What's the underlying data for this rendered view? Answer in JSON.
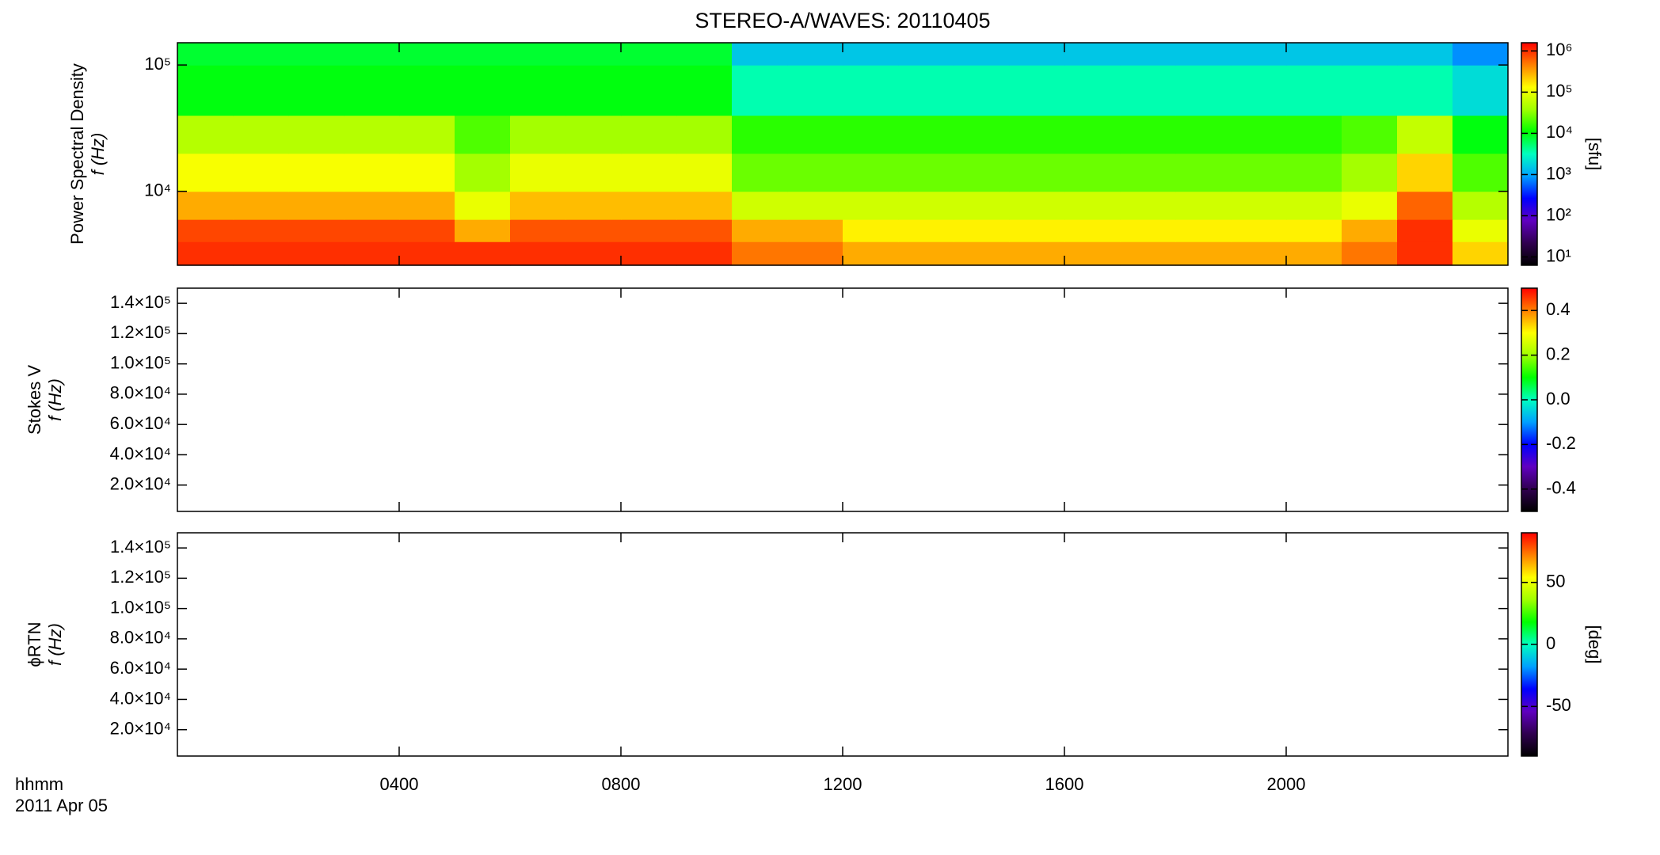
{
  "chart_data": [
    {
      "type": "heatmap",
      "title": "STEREO-A/WAVES: 20110405",
      "ylabel": [
        "Power Spectral Density",
        "f (Hz)"
      ],
      "ylog": true,
      "ylim": [
        2600,
        150000
      ],
      "yticks": [
        {
          "value": 10000,
          "label": "10⁴"
        },
        {
          "value": 100000,
          "label": "10⁵"
        }
      ],
      "x_bins": [
        0,
        1,
        2,
        3,
        4,
        5,
        6,
        7,
        8,
        9,
        10,
        11,
        12,
        13,
        14,
        15,
        16,
        17,
        18,
        19,
        20,
        21,
        22,
        23,
        24
      ],
      "y_bins": [
        2600,
        4000,
        6000,
        10000,
        20000,
        40000,
        100000,
        150000
      ],
      "z": [
        [
          1000000,
          1000000,
          1000000,
          1000000,
          1000000,
          1000000,
          1000000,
          1000000,
          1000000,
          1000000,
          500000,
          500000,
          300000,
          300000,
          300000,
          300000,
          300000,
          300000,
          300000,
          300000,
          300000,
          500000,
          1000000,
          200000
        ],
        [
          800000,
          800000,
          800000,
          800000,
          800000,
          300000,
          700000,
          700000,
          700000,
          700000,
          300000,
          300000,
          150000,
          150000,
          150000,
          150000,
          150000,
          150000,
          150000,
          150000,
          150000,
          300000,
          1000000,
          100000
        ],
        [
          300000,
          300000,
          300000,
          300000,
          300000,
          100000,
          250000,
          250000,
          250000,
          250000,
          70000,
          70000,
          70000,
          70000,
          70000,
          70000,
          70000,
          70000,
          70000,
          70000,
          70000,
          100000,
          600000,
          50000
        ],
        [
          120000,
          120000,
          120000,
          120000,
          120000,
          40000,
          100000,
          100000,
          100000,
          100000,
          25000,
          25000,
          25000,
          25000,
          25000,
          25000,
          25000,
          25000,
          25000,
          25000,
          25000,
          40000,
          200000,
          20000
        ],
        [
          50000,
          50000,
          50000,
          50000,
          50000,
          20000,
          40000,
          40000,
          40000,
          40000,
          15000,
          15000,
          15000,
          15000,
          15000,
          15000,
          15000,
          15000,
          15000,
          15000,
          15000,
          20000,
          60000,
          10000
        ],
        [
          10000,
          10000,
          10000,
          10000,
          10000,
          10000,
          10000,
          10000,
          10000,
          10000,
          3500,
          3500,
          3500,
          3500,
          3500,
          3500,
          3500,
          3500,
          3500,
          3500,
          3500,
          3500,
          3500,
          2000
        ],
        [
          8000,
          8000,
          8000,
          8000,
          8000,
          8000,
          8000,
          8000,
          8000,
          8000,
          1500,
          1500,
          1500,
          1500,
          1500,
          1500,
          1500,
          1500,
          1500,
          1500,
          1500,
          1500,
          1500,
          800
        ]
      ],
      "zlog": true,
      "zlim": [
        6.3,
        1580000
      ],
      "zticks": [
        {
          "value": 10,
          "label": "10¹"
        },
        {
          "value": 100,
          "label": "10²"
        },
        {
          "value": 1000,
          "label": "10³"
        },
        {
          "value": 10000,
          "label": "10⁴"
        },
        {
          "value": 100000,
          "label": "10⁵"
        },
        {
          "value": 1000000,
          "label": "10⁶"
        }
      ],
      "zlabel": "[sfu]",
      "colormap": [
        "#000000",
        "#300050",
        "#6000c0",
        "#0000ff",
        "#00a0ff",
        "#00ffc0",
        "#00ff00",
        "#a0ff00",
        "#ffff00",
        "#ff8000",
        "#ff0000"
      ]
    },
    {
      "type": "heatmap",
      "ylabel": [
        "Stokes V",
        "f (Hz)"
      ],
      "ylim": [
        2600,
        150000
      ],
      "yticks": [
        {
          "value": 20000,
          "label": "2.0×10⁴"
        },
        {
          "value": 40000,
          "label": "4.0×10⁴"
        },
        {
          "value": 60000,
          "label": "6.0×10⁴"
        },
        {
          "value": 80000,
          "label": "8.0×10⁴"
        },
        {
          "value": 100000,
          "label": "1.0×10⁵"
        },
        {
          "value": 120000,
          "label": "1.2×10⁵"
        },
        {
          "value": 140000,
          "label": "1.4×10⁵"
        }
      ],
      "zlim": [
        -0.5,
        0.5
      ],
      "zticks": [
        -0.4,
        -0.2,
        {
          "value": 0,
          "label": "0.0"
        },
        0.2,
        0.4
      ],
      "colormap": [
        "#000000",
        "#300050",
        "#6000c0",
        "#0000ff",
        "#00a0ff",
        "#00ffc0",
        "#00ff00",
        "#a0ff00",
        "#ffff00",
        "#ff8000",
        "#ff0000"
      ]
    },
    {
      "type": "heatmap",
      "ylabel": [
        "ϕRTN",
        "f (Hz)"
      ],
      "ylim": [
        2600,
        150000
      ],
      "yticks": [
        {
          "value": 20000,
          "label": "2.0×10⁴"
        },
        {
          "value": 40000,
          "label": "4.0×10⁴"
        },
        {
          "value": 60000,
          "label": "6.0×10⁴"
        },
        {
          "value": 80000,
          "label": "8.0×10⁴"
        },
        {
          "value": 100000,
          "label": "1.0×10⁵"
        },
        {
          "value": 120000,
          "label": "1.2×10⁵"
        },
        {
          "value": 140000,
          "label": "1.4×10⁵"
        }
      ],
      "zlim": [
        -90,
        90
      ],
      "zticks": [
        -50,
        0,
        50
      ],
      "zlabel": "[deg]",
      "colormap": [
        "#000000",
        "#300050",
        "#6000c0",
        "#0000ff",
        "#00a0ff",
        "#00ffc0",
        "#00ff00",
        "#a0ff00",
        "#ffff00",
        "#ff8000",
        "#ff0000"
      ],
      "xlim": [
        0,
        24
      ],
      "xticks": [
        {
          "value": 4,
          "label": "0400"
        },
        {
          "value": 8,
          "label": "0800"
        },
        {
          "value": 12,
          "label": "1200"
        },
        {
          "value": 16,
          "label": "1600"
        },
        {
          "value": 20,
          "label": "2000"
        }
      ],
      "xlabel": [
        "hhmm",
        "2011 Apr 05"
      ]
    }
  ]
}
